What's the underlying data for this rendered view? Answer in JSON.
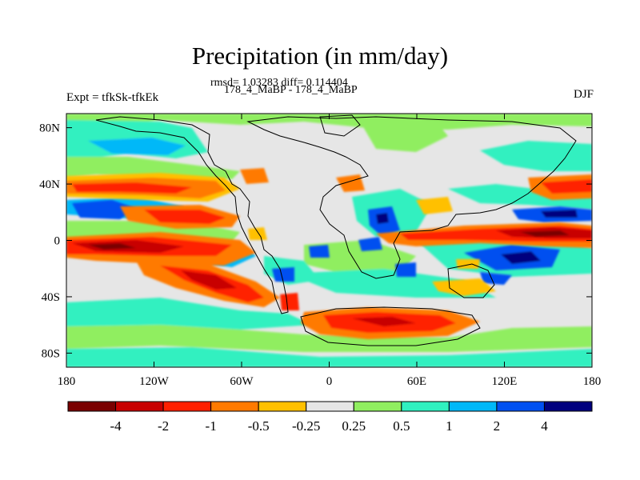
{
  "title": "Precipitation (in mm/day)",
  "stats": "rmsd= 1.03283 diff= 0.114404",
  "subtitle": "178_4_MaBP - 178_4_MaBP",
  "left_label": "Expt = tfkSk-tfkEk",
  "right_label": "DJF",
  "map": {
    "projection": "cylindrical-equidistant",
    "lon_range": [
      -180,
      180
    ],
    "lat_range": [
      -90,
      90
    ],
    "lon_ticks": [
      {
        "value": -180,
        "label": "180"
      },
      {
        "value": -120,
        "label": "120W"
      },
      {
        "value": -60,
        "label": "60W"
      },
      {
        "value": 0,
        "label": "0"
      },
      {
        "value": 60,
        "label": "60E"
      },
      {
        "value": 120,
        "label": "120E"
      },
      {
        "value": 180,
        "label": "180"
      }
    ],
    "lat_ticks": [
      {
        "value": 80,
        "label": "80N"
      },
      {
        "value": 40,
        "label": "40N"
      },
      {
        "value": 0,
        "label": "0"
      },
      {
        "value": -40,
        "label": "40S"
      },
      {
        "value": -80,
        "label": "80S"
      }
    ],
    "neutral_color": "#e6e6e6",
    "coastline_color": "#000000"
  },
  "colorbar": {
    "colors": [
      "#7a0000",
      "#c80000",
      "#ff2000",
      "#ff7a00",
      "#ffc000",
      "#e6e6e6",
      "#90ee60",
      "#30f0c0",
      "#00b8f8",
      "#0050f0",
      "#00007e"
    ],
    "labels": [
      "-4",
      "-2",
      "-1",
      "-0.5",
      "-0.25",
      "0.25",
      "0.5",
      "1",
      "2",
      "4"
    ],
    "levels": [
      -4,
      -2,
      -1,
      -0.5,
      -0.25,
      0.25,
      0.5,
      1,
      2,
      4
    ]
  },
  "chart_data": {
    "type": "heatmap",
    "title": "Precipitation (in mm/day)",
    "subtitle": "178_4_MaBP - 178_4_MaBP",
    "field": "precipitation difference (mm/day)",
    "season": "DJF",
    "rmsd": 1.03283,
    "diff": 0.114404,
    "contour_levels": [
      -4,
      -2,
      -1,
      -0.5,
      -0.25,
      0.25,
      0.5,
      1,
      2,
      4
    ],
    "anomalies": [
      {
        "lon": -150,
        "lat": -5,
        "value": -4
      },
      {
        "lon": -150,
        "lat": -8,
        "value": -2
      },
      {
        "lon": -110,
        "lat": -28,
        "value": -2
      },
      {
        "lon": -150,
        "lat": 35,
        "value": -1
      },
      {
        "lon": -120,
        "lat": 25,
        "value": -2
      },
      {
        "lon": 140,
        "lat": 5,
        "value": -4
      },
      {
        "lon": 100,
        "lat": 2,
        "value": -2
      },
      {
        "lon": 150,
        "lat": 35,
        "value": -2
      },
      {
        "lon": 60,
        "lat": -58,
        "value": -2
      },
      {
        "lon": 120,
        "lat": -20,
        "value": 1
      },
      {
        "lon": 150,
        "lat": 15,
        "value": 2
      },
      {
        "lon": 148,
        "lat": 14,
        "value": 4
      },
      {
        "lon": 35,
        "lat": 10,
        "value": 4
      },
      {
        "lon": -160,
        "lat": 15,
        "value": 2
      },
      {
        "lon": -170,
        "lat": 60,
        "value": 1
      },
      {
        "lon": 20,
        "lat": 60,
        "value": 0.5
      }
    ]
  }
}
